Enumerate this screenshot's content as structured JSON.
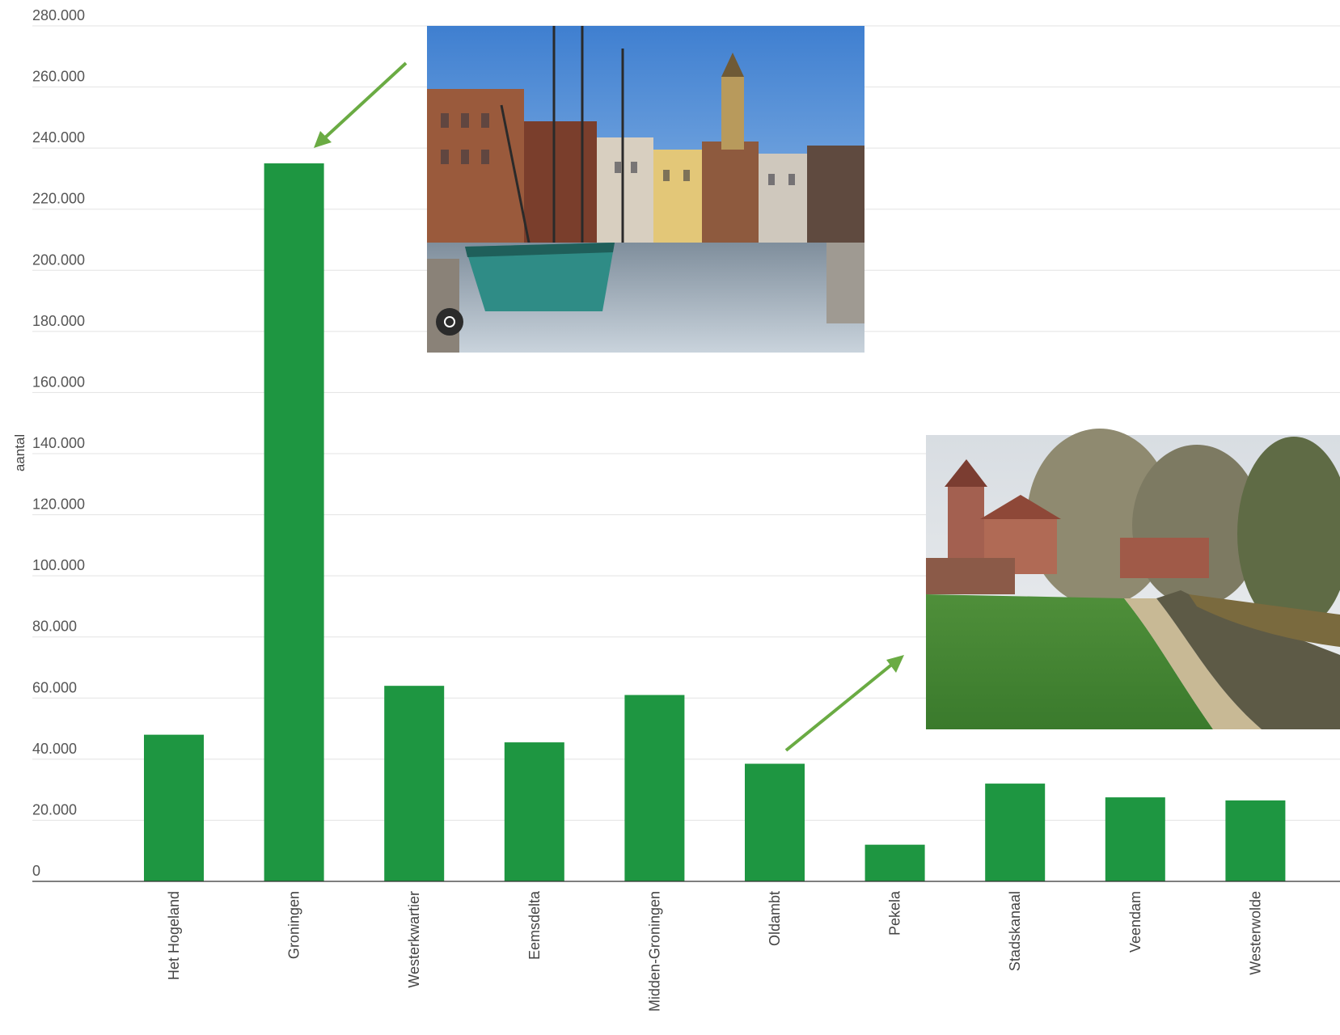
{
  "chart_data": {
    "type": "bar",
    "ylabel": "aantal",
    "ylim": [
      0,
      280000
    ],
    "yticks": [
      0,
      20000,
      40000,
      60000,
      80000,
      100000,
      120000,
      140000,
      160000,
      180000,
      200000,
      220000,
      240000,
      260000,
      280000
    ],
    "ytick_labels": [
      "0",
      "20.000",
      "40.000",
      "60.000",
      "80.000",
      "100.000",
      "120.000",
      "140.000",
      "160.000",
      "180.000",
      "200.000",
      "220.000",
      "240.000",
      "260.000",
      "280.000"
    ],
    "categories": [
      "Het Hogeland",
      "Groningen",
      "Westerkwartier",
      "Eemsdelta",
      "Midden-Groningen",
      "Oldambt",
      "Pekela",
      "Stadskanaal",
      "Veendam",
      "Westerwolde"
    ],
    "values": [
      48000,
      235000,
      64000,
      45500,
      61000,
      38500,
      12000,
      32000,
      27500,
      26500
    ],
    "bar_color": "#1e9641",
    "grid": true
  },
  "annotations": {
    "arrow_color": "#6aab43",
    "photo_city": "harbour-city-photo",
    "photo_village": "village-church-photo"
  }
}
